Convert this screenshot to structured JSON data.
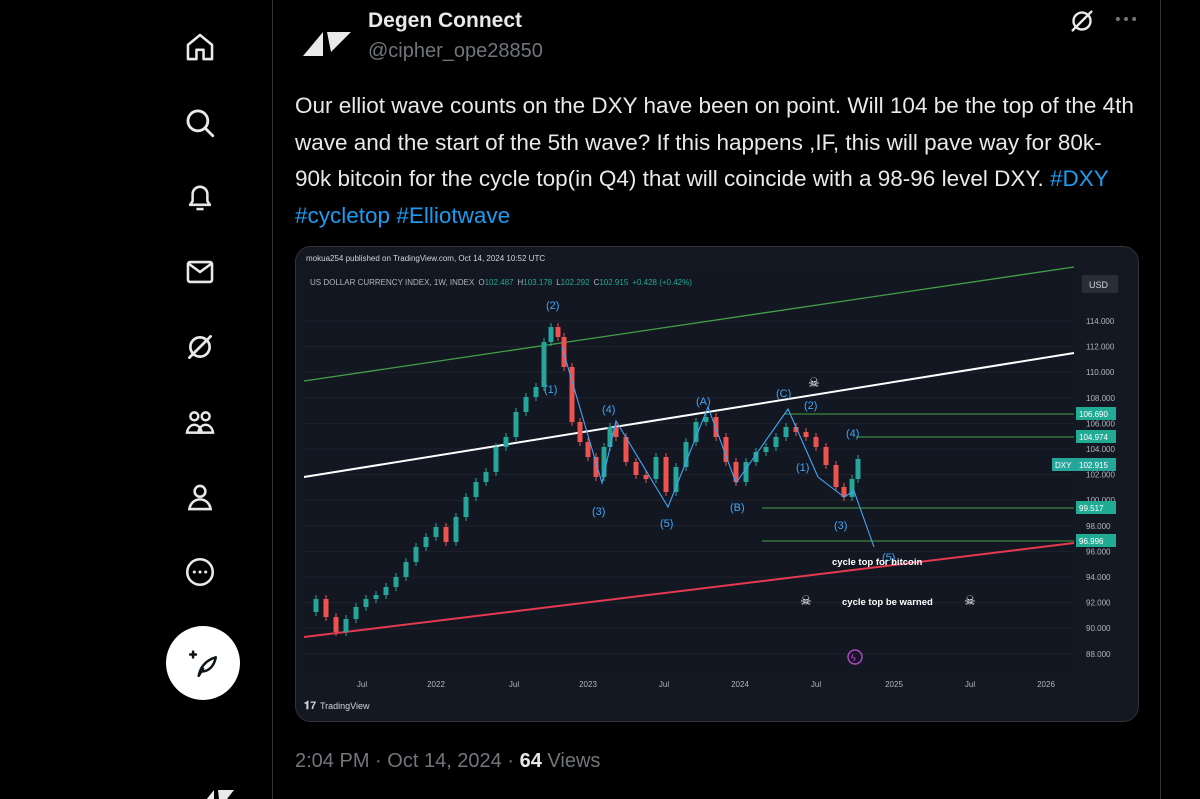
{
  "sidebar": {
    "icons": [
      "home-icon",
      "search-icon",
      "notifications-icon",
      "messages-icon",
      "grok-icon",
      "communities-icon",
      "profile-icon",
      "more-icon"
    ],
    "compose_icon": "compose-feather-icon"
  },
  "post": {
    "author_name": "Degen Connect",
    "author_handle": "@cipher_ope28850",
    "text_parts": [
      "Our elliot wave counts on the DXY have been on point. Will 104 be the top of the 4th wave and the start of the  5th wave? If this happens ,IF, this will pave way for 80k-90k bitcoin for the cycle top(in Q4) that will coincide with a 98-96 level DXY. "
    ],
    "hashtags": [
      "#DXY",
      "#cycletop",
      "#Elliotwave"
    ],
    "time": "2:04 PM",
    "sep1": "·",
    "date": "Oct 14, 2024",
    "sep2": "·",
    "views_count": "64",
    "views_label": "Views"
  },
  "chart_image": {
    "published": "mokua254 published on TradingView.com, Oct 14, 2024 10:52 UTC",
    "symbol_line_prefix": "US DOLLAR CURRENCY INDEX, 1W, INDEX",
    "ohlc": {
      "o_label": "O",
      "o": "102.487",
      "h_label": "H",
      "h": "103.178",
      "l_label": "L",
      "l": "102.292",
      "c_label": "C",
      "c": "102.915",
      "change": "+0.428 (+0.42%)"
    },
    "currency_badge": "USD",
    "y_ticks": [
      "114.000",
      "112.000",
      "110.000",
      "108.000",
      "106.000",
      "104.000",
      "102.000",
      "100.000",
      "98.000",
      "96.000",
      "94.000",
      "92.000",
      "90.000",
      "88.000"
    ],
    "x_ticks": [
      "Jul",
      "2022",
      "Jul",
      "2023",
      "Jul",
      "2024",
      "Jul",
      "2025",
      "Jul",
      "2026"
    ],
    "price_labels": [
      {
        "value": "106.690",
        "color": "#22ab94"
      },
      {
        "value": "104.974",
        "color": "#22ab94"
      },
      {
        "value": "102.915",
        "color": "#26a69a",
        "tag": "DXY"
      },
      {
        "value": "99.517",
        "color": "#22ab94"
      },
      {
        "value": "96.996",
        "color": "#22ab94"
      }
    ],
    "wave_labels": [
      "(2)",
      "(1)",
      "(4)",
      "(3)",
      "(5)",
      "(A)",
      "(B)",
      "(C)",
      "(2)",
      "(1)",
      "(4)",
      "(3)",
      "(5)"
    ],
    "annotations": {
      "cycle_top": "cycle top for bitcoin",
      "warned": "cycle  top  be  warned"
    },
    "watermark": "TradingView",
    "colors": {
      "up": "#26a69a",
      "down": "#ef5350",
      "wave_line": "#42a5f5",
      "upper_channel": "#43a047",
      "lower_channel": "#e53950",
      "mid_line": "#ffffff",
      "background": "#141822"
    }
  }
}
